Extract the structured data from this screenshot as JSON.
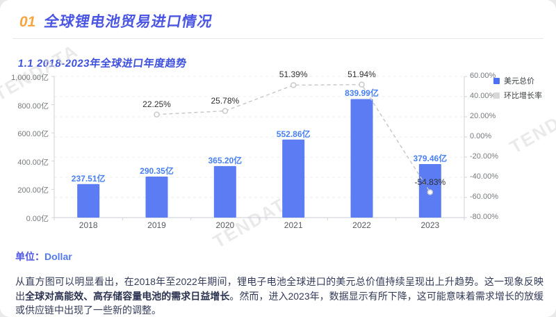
{
  "header": {
    "section_number": "01",
    "title": "全球锂电池贸易进口情况"
  },
  "subtitle": "1.1 2018-2023年全球进口年度趋势",
  "watermark": "TENDATA",
  "chart_data": {
    "type": "bar",
    "title": "1.1 2018-2023年全球进口年度趋势",
    "categories": [
      "2018",
      "2019",
      "2020",
      "2021",
      "2022",
      "2023"
    ],
    "series": [
      {
        "name": "美元总价",
        "type": "bar",
        "axis": "left",
        "unit": "亿",
        "values": [
          237.51,
          290.35,
          365.2,
          552.86,
          839.99,
          379.46
        ],
        "labels": [
          "237.51亿",
          "290.35亿",
          "365.20亿",
          "552.86亿",
          "839.99亿",
          "379.46亿"
        ],
        "color": "#5b7cf2"
      },
      {
        "name": "环比增长率",
        "type": "line",
        "axis": "right",
        "unit": "%",
        "values": [
          null,
          22.25,
          25.78,
          51.39,
          51.94,
          -54.83
        ],
        "labels": [
          null,
          "22.25%",
          "25.78%",
          "51.39%",
          "51.94%",
          "-54.83%"
        ],
        "color": "#c9c9c9"
      }
    ],
    "left_axis": {
      "min": 0,
      "max": 1000,
      "tick_labels": [
        "1,000.00亿",
        "800.00亿",
        "600.00亿",
        "400.00亿",
        "200.00亿",
        "0.00亿"
      ]
    },
    "right_axis": {
      "min": -80,
      "max": 60,
      "tick_labels": [
        "60.00%",
        "40.00%",
        "20.00%",
        "0.00%",
        "-20.00%",
        "-40.00%",
        "-60.00%",
        "-80.00%"
      ]
    },
    "legend": [
      {
        "label": "美元总价",
        "color": "#4d6ff1"
      },
      {
        "label": "环比增长率",
        "color": "#d8d8d8"
      }
    ],
    "legend_position": "top-right",
    "grid": true
  },
  "footer": {
    "unit_label": "单位：",
    "unit_value": "Dollar",
    "analysis": [
      "从直方图可以明显看出，在2018年至2022年期间，锂电子电池全球进口的美元总价值持续呈现出上升趋势。这一现象反映出",
      "全球对高能效、高存储容量电池的需求日益增长",
      "。然而，进入2023年，数据显示有所下降，这可能意味着需求增长的放缓或供应链中出现了一些新的调整。"
    ]
  },
  "colors": {
    "accent_orange": "#f7a53c",
    "title_blue": "#4a55e2",
    "subtitle_blue": "#3d51dc",
    "bar_blue": "#5b7cf2",
    "bar_label_blue": "#4880f2",
    "growth_line_gray": "#c9c9c9",
    "watermark_gray": "#d9d9d9"
  }
}
